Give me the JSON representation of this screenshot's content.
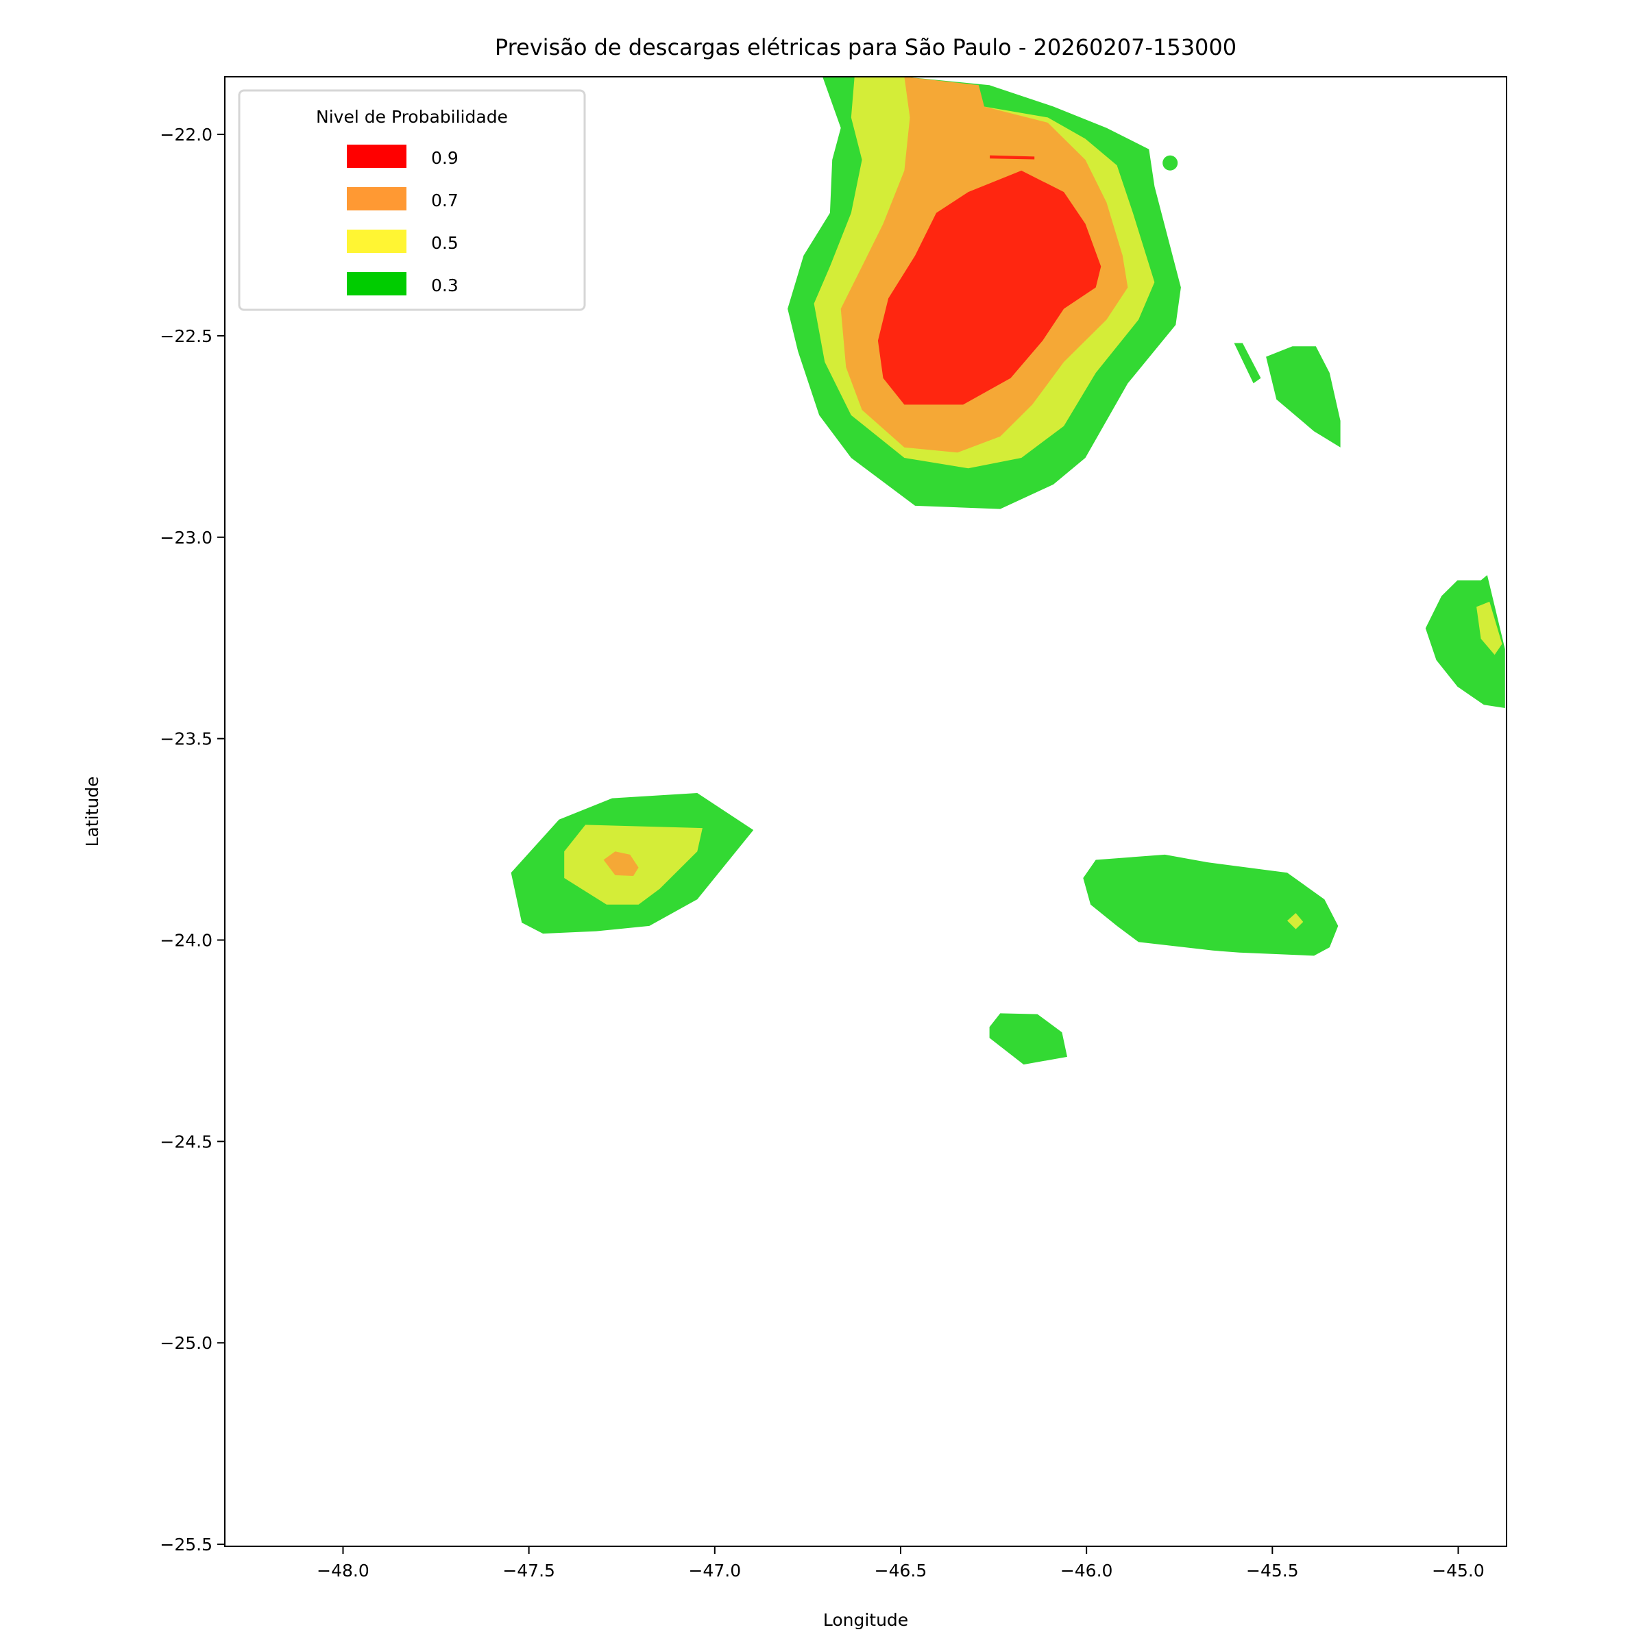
{
  "chart_data": {
    "type": "contourf",
    "title": "Previsão de descargas elétricas para São Paulo - 20260207-153000",
    "xlabel": "Longitude",
    "ylabel": "Latitude",
    "xlim": [
      -48.318,
      -44.87
    ],
    "ylim": [
      -25.505,
      -21.857
    ],
    "xticks": [
      -48.0,
      -47.5,
      -47.0,
      -46.5,
      -46.0,
      -45.5,
      -45.0
    ],
    "xtick_labels": [
      "−48.0",
      "−47.5",
      "−47.0",
      "−46.5",
      "−46.0",
      "−45.5",
      "−45.0"
    ],
    "yticks": [
      -22.0,
      -22.5,
      -23.0,
      -23.5,
      -24.0,
      -24.5,
      -25.0,
      -25.5
    ],
    "ytick_labels": [
      "−22.0",
      "−22.5",
      "−23.0",
      "−23.5",
      "−24.0",
      "−24.5",
      "−25.0",
      "−25.5"
    ],
    "grid": false,
    "legend": {
      "title": "Nivel de Probabilidade",
      "placement": "upper-left",
      "entries": [
        {
          "label": "0.9",
          "color": "#ff0000"
        },
        {
          "label": "0.7",
          "color": "#ff9933"
        },
        {
          "label": "0.5",
          "color": "#fff533"
        },
        {
          "label": "0.3",
          "color": "#00cc00"
        }
      ]
    },
    "fill_colors": {
      "0.3": "#33d933",
      "0.5": "#d4ed38",
      "0.7": "#f5a836",
      "0.9": "#ff2610"
    },
    "regions": [
      {
        "name": "main-cell",
        "level": "0.3",
        "points": [
          [
            -46.71,
            -21.857
          ],
          [
            -46.49,
            -21.857
          ],
          [
            -46.261,
            -21.878
          ],
          [
            -46.089,
            -21.931
          ],
          [
            -45.946,
            -21.984
          ],
          [
            -45.832,
            -22.037
          ],
          [
            -45.817,
            -22.129
          ],
          [
            -45.746,
            -22.38
          ],
          [
            -45.76,
            -22.473
          ],
          [
            -45.889,
            -22.618
          ],
          [
            -46.003,
            -22.803
          ],
          [
            -46.089,
            -22.869
          ],
          [
            -46.232,
            -22.93
          ],
          [
            -46.461,
            -22.922
          ],
          [
            -46.633,
            -22.803
          ],
          [
            -46.719,
            -22.697
          ],
          [
            -46.776,
            -22.539
          ],
          [
            -46.804,
            -22.433
          ],
          [
            -46.761,
            -22.301
          ],
          [
            -46.69,
            -22.195
          ],
          [
            -46.684,
            -22.063
          ],
          [
            -46.661,
            -21.984
          ]
        ]
      },
      {
        "name": "main-cell",
        "level": "0.5",
        "points": [
          [
            -46.624,
            -21.857
          ],
          [
            -46.49,
            -21.857
          ],
          [
            -46.275,
            -21.931
          ],
          [
            -46.104,
            -21.958
          ],
          [
            -46.003,
            -22.011
          ],
          [
            -45.918,
            -22.077
          ],
          [
            -45.875,
            -22.195
          ],
          [
            -45.817,
            -22.367
          ],
          [
            -45.86,
            -22.46
          ],
          [
            -45.975,
            -22.592
          ],
          [
            -46.061,
            -22.724
          ],
          [
            -46.175,
            -22.803
          ],
          [
            -46.318,
            -22.829
          ],
          [
            -46.49,
            -22.803
          ],
          [
            -46.633,
            -22.697
          ],
          [
            -46.704,
            -22.565
          ],
          [
            -46.733,
            -22.42
          ],
          [
            -46.69,
            -22.328
          ],
          [
            -46.633,
            -22.195
          ],
          [
            -46.604,
            -22.063
          ],
          [
            -46.633,
            -21.958
          ]
        ]
      },
      {
        "name": "main-cell",
        "level": "0.7",
        "points": [
          [
            -46.49,
            -21.857
          ],
          [
            -46.29,
            -21.878
          ],
          [
            -46.275,
            -21.931
          ],
          [
            -46.104,
            -21.971
          ],
          [
            -46.003,
            -22.063
          ],
          [
            -45.946,
            -22.169
          ],
          [
            -45.903,
            -22.301
          ],
          [
            -45.889,
            -22.38
          ],
          [
            -45.946,
            -22.46
          ],
          [
            -46.061,
            -22.565
          ],
          [
            -46.146,
            -22.671
          ],
          [
            -46.232,
            -22.75
          ],
          [
            -46.347,
            -22.79
          ],
          [
            -46.49,
            -22.777
          ],
          [
            -46.604,
            -22.684
          ],
          [
            -46.647,
            -22.578
          ],
          [
            -46.661,
            -22.433
          ],
          [
            -46.604,
            -22.328
          ],
          [
            -46.547,
            -22.222
          ],
          [
            -46.49,
            -22.09
          ],
          [
            -46.475,
            -21.958
          ]
        ]
      },
      {
        "name": "main-cell",
        "level": "0.9",
        "points": [
          [
            -46.318,
            -22.143
          ],
          [
            -46.175,
            -22.09
          ],
          [
            -46.061,
            -22.143
          ],
          [
            -46.003,
            -22.222
          ],
          [
            -45.961,
            -22.328
          ],
          [
            -45.975,
            -22.38
          ],
          [
            -46.061,
            -22.433
          ],
          [
            -46.118,
            -22.512
          ],
          [
            -46.204,
            -22.605
          ],
          [
            -46.332,
            -22.671
          ],
          [
            -46.49,
            -22.671
          ],
          [
            -46.547,
            -22.605
          ],
          [
            -46.561,
            -22.512
          ],
          [
            -46.533,
            -22.407
          ],
          [
            -46.461,
            -22.301
          ],
          [
            -46.404,
            -22.195
          ]
        ]
      },
      {
        "name": "main-cell-strip",
        "level": "0.9",
        "points": [
          [
            -46.26,
            -22.052
          ],
          [
            -46.14,
            -22.055
          ],
          [
            -46.14,
            -22.062
          ],
          [
            -46.26,
            -22.06
          ]
        ]
      },
      {
        "name": "southwest-cell",
        "level": "0.3",
        "points": [
          [
            -47.548,
            -23.833
          ],
          [
            -47.419,
            -23.701
          ],
          [
            -47.276,
            -23.648
          ],
          [
            -47.047,
            -23.635
          ],
          [
            -46.896,
            -23.727
          ],
          [
            -47.047,
            -23.899
          ],
          [
            -47.176,
            -23.965
          ],
          [
            -47.319,
            -23.978
          ],
          [
            -47.462,
            -23.984
          ],
          [
            -47.519,
            -23.957
          ]
        ]
      },
      {
        "name": "southwest-cell",
        "level": "0.5",
        "points": [
          [
            -47.405,
            -23.78
          ],
          [
            -47.348,
            -23.714
          ],
          [
            -47.033,
            -23.722
          ],
          [
            -47.047,
            -23.78
          ],
          [
            -47.148,
            -23.873
          ],
          [
            -47.205,
            -23.912
          ],
          [
            -47.291,
            -23.912
          ],
          [
            -47.405,
            -23.846
          ]
        ]
      },
      {
        "name": "southwest-cell",
        "level": "0.7",
        "points": [
          [
            -47.299,
            -23.801
          ],
          [
            -47.268,
            -23.78
          ],
          [
            -47.228,
            -23.788
          ],
          [
            -47.205,
            -23.82
          ],
          [
            -47.219,
            -23.841
          ],
          [
            -47.268,
            -23.839
          ]
        ]
      },
      {
        "name": "southeast-cell",
        "level": "0.3",
        "points": [
          [
            -46.009,
            -23.846
          ],
          [
            -45.975,
            -23.801
          ],
          [
            -45.789,
            -23.788
          ],
          [
            -45.674,
            -23.807
          ],
          [
            -45.46,
            -23.833
          ],
          [
            -45.36,
            -23.899
          ],
          [
            -45.323,
            -23.965
          ],
          [
            -45.346,
            -24.018
          ],
          [
            -45.388,
            -24.039
          ],
          [
            -45.589,
            -24.031
          ],
          [
            -45.66,
            -24.026
          ],
          [
            -45.86,
            -24.005
          ],
          [
            -45.918,
            -23.965
          ],
          [
            -45.989,
            -23.912
          ]
        ]
      },
      {
        "name": "southeast-cell",
        "level": "0.5",
        "points": [
          [
            -45.46,
            -23.952
          ],
          [
            -45.437,
            -23.933
          ],
          [
            -45.417,
            -23.955
          ],
          [
            -45.437,
            -23.973
          ]
        ]
      },
      {
        "name": "south-small-cell",
        "level": "0.3",
        "points": [
          [
            -46.261,
            -24.216
          ],
          [
            -46.232,
            -24.182
          ],
          [
            -46.132,
            -24.184
          ],
          [
            -46.066,
            -24.229
          ],
          [
            -46.052,
            -24.29
          ],
          [
            -46.169,
            -24.309
          ],
          [
            -46.261,
            -24.243
          ]
        ]
      },
      {
        "name": "northeast-strip",
        "level": "0.3",
        "points": [
          [
            -45.603,
            -22.518
          ],
          [
            -45.58,
            -22.518
          ],
          [
            -45.531,
            -22.605
          ],
          [
            -45.551,
            -22.618
          ]
        ]
      },
      {
        "name": "northeast-cell",
        "level": "0.3",
        "points": [
          [
            -45.517,
            -22.552
          ],
          [
            -45.446,
            -22.526
          ],
          [
            -45.383,
            -22.526
          ],
          [
            -45.346,
            -22.592
          ],
          [
            -45.317,
            -22.711
          ],
          [
            -45.317,
            -22.777
          ],
          [
            -45.388,
            -22.737
          ],
          [
            -45.489,
            -22.658
          ]
        ]
      },
      {
        "name": "east-edge-cell",
        "level": "0.3",
        "points": [
          [
            -45.088,
            -23.226
          ],
          [
            -45.045,
            -23.146
          ],
          [
            -45.002,
            -23.107
          ],
          [
            -44.939,
            -23.107
          ],
          [
            -44.922,
            -23.094
          ],
          [
            -44.874,
            -23.278
          ],
          [
            -44.874,
            -23.424
          ],
          [
            -44.931,
            -23.416
          ],
          [
            -45.002,
            -23.371
          ],
          [
            -45.059,
            -23.305
          ]
        ]
      },
      {
        "name": "east-edge-cell",
        "level": "0.5",
        "points": [
          [
            -44.951,
            -23.173
          ],
          [
            -44.916,
            -23.16
          ],
          [
            -44.882,
            -23.265
          ],
          [
            -44.902,
            -23.292
          ],
          [
            -44.939,
            -23.252
          ]
        ]
      }
    ],
    "points": [
      {
        "lon": -45.775,
        "lat": -22.071,
        "level": "0.3"
      }
    ]
  }
}
